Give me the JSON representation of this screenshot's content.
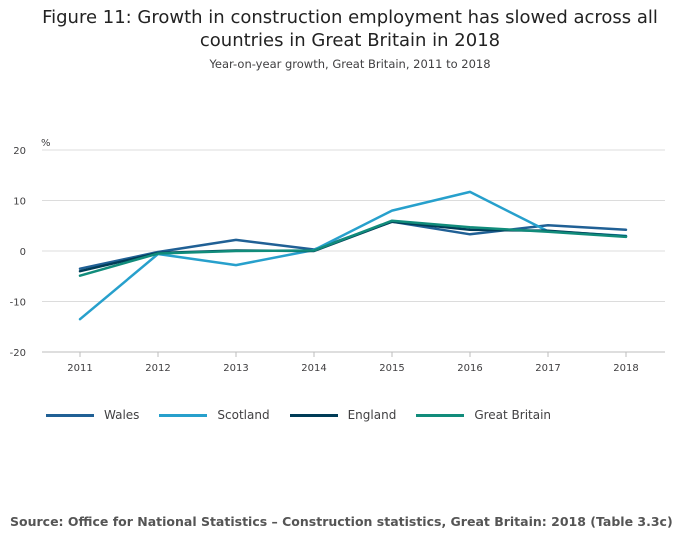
{
  "header": {
    "title_line1": "Figure 11: Growth in construction employment has slowed across all",
    "title_line2": "countries in Great Britain in 2018",
    "subtitle": "Year-on-year growth, Great Britain, 2011 to 2018"
  },
  "chart_data": {
    "type": "line",
    "title": "Figure 11: Growth in construction employment has slowed across all countries in Great Britain in 2018",
    "subtitle": "Year-on-year growth, Great Britain, 2011 to 2018",
    "xlabel": "",
    "ylabel": "%",
    "categories": [
      "2011",
      "2012",
      "2013",
      "2014",
      "2015",
      "2016",
      "2017",
      "2018"
    ],
    "yticks": [
      20,
      10,
      0,
      -10,
      -20
    ],
    "ylim": [
      -20,
      20
    ],
    "grid": true,
    "legend_position": "bottom-left",
    "series": [
      {
        "name": "Wales",
        "color": "#206095",
        "values": [
          -3.5,
          -0.2,
          2.2,
          0.3,
          5.8,
          3.3,
          5.1,
          4.2
        ]
      },
      {
        "name": "Scotland",
        "color": "#27a0cc",
        "values": [
          -13.5,
          -0.6,
          -2.8,
          0.2,
          8.0,
          11.7,
          3.9,
          3.0
        ]
      },
      {
        "name": "England",
        "color": "#003c57",
        "values": [
          -4.0,
          -0.4,
          0.1,
          0.0,
          5.8,
          4.2,
          4.0,
          2.9
        ]
      },
      {
        "name": "Great Britain",
        "color": "#118c7b",
        "values": [
          -4.9,
          -0.5,
          0.0,
          0.1,
          6.0,
          4.7,
          3.8,
          2.8
        ]
      }
    ]
  },
  "source": "Source: Office for National Statistics – Construction statistics, Great Britain: 2018 (Table 3.3c)"
}
